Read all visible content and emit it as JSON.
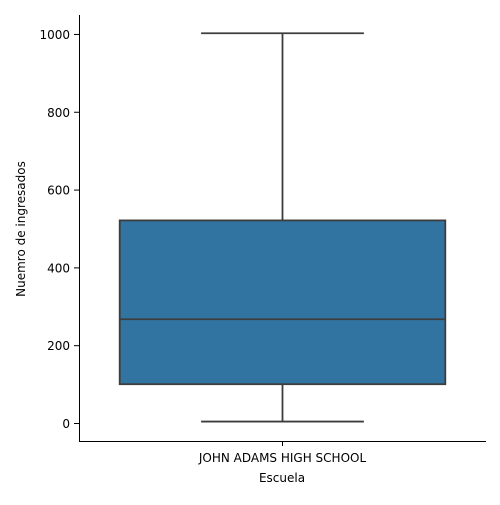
{
  "chart_data": {
    "type": "box",
    "title": "",
    "xlabel": "Escuela",
    "ylabel": "Nuemro de ingresados",
    "categories": [
      "JOHN ADAMS HIGH SCHOOL"
    ],
    "boxes": [
      {
        "category": "JOHN ADAMS HIGH SCHOOL",
        "whisker_low": 5,
        "q1": 101,
        "median": 268,
        "q3": 522,
        "whisker_high": 1003
      }
    ],
    "yticks": [
      0,
      200,
      400,
      600,
      800,
      1000
    ],
    "ylim": [
      -45,
      1050
    ],
    "grid": false,
    "colors": {
      "box_fill": "#3274a1",
      "box_line": "#3d3d3d",
      "axis": "#000000"
    }
  }
}
